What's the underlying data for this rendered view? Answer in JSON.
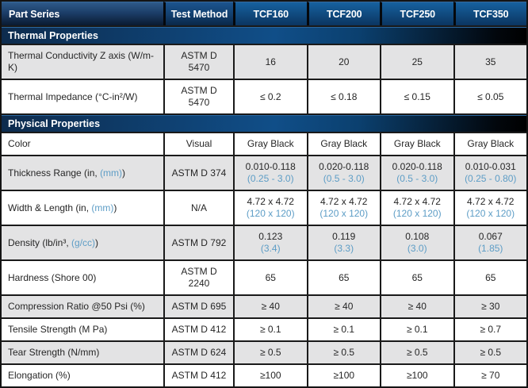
{
  "colors": {
    "header_blue_top": "#16619f",
    "header_blue_bottom": "#0b3560",
    "header_dark_top": "#2e5a8a",
    "header_dark_bottom": "#0a1a30",
    "band_blue": "#104e88",
    "sub_value_blue": "#5d9dc6",
    "row_gray": "#e3e3e4",
    "border": "#1a1a1a",
    "text": "#262626"
  },
  "header": {
    "columns": [
      "Part Series",
      "Test Method",
      "TCF160",
      "TCF200",
      "TCF250",
      "TCF350"
    ]
  },
  "sections": [
    {
      "title": "Thermal Properties",
      "rows": [
        {
          "shade": "gray",
          "size": "tall",
          "label": [
            {
              "t": "Thermal Conductivity Z axis (W/m-K)"
            }
          ],
          "method": "ASTM D\n5470",
          "values": [
            {
              "main": "16"
            },
            {
              "main": "20"
            },
            {
              "main": "25"
            },
            {
              "main": "35"
            }
          ]
        },
        {
          "shade": "white",
          "size": "tall",
          "label": [
            {
              "t": "Thermal Impedance (°C-in²/W)"
            }
          ],
          "method": "ASTM D\n5470",
          "values": [
            {
              "main": "≤ 0.2"
            },
            {
              "main": "≤ 0.18"
            },
            {
              "main": "≤ 0.15"
            },
            {
              "main": "≤ 0.05"
            }
          ]
        }
      ]
    },
    {
      "title": "Physical Properties",
      "rows": [
        {
          "shade": "white",
          "size": "short",
          "label": [
            {
              "t": "Color"
            }
          ],
          "method": "Visual",
          "values": [
            {
              "main": "Gray Black"
            },
            {
              "main": "Gray Black"
            },
            {
              "main": "Gray Black"
            },
            {
              "main": "Gray Black"
            }
          ]
        },
        {
          "shade": "gray",
          "size": "tall",
          "label": [
            {
              "t": "Thickness Range (in, "
            },
            {
              "t": "(mm)",
              "blue": true
            },
            {
              "t": ")"
            }
          ],
          "method": "ASTM D 374",
          "values": [
            {
              "main": "0.010-0.118",
              "sub": "(0.25 - 3.0)"
            },
            {
              "main": "0.020-0.118",
              "sub": "(0.5 - 3.0)"
            },
            {
              "main": "0.020-0.118",
              "sub": "(0.5 - 3.0)"
            },
            {
              "main": "0.010-0.031",
              "sub": "(0.25 - 0.80)"
            }
          ]
        },
        {
          "shade": "white",
          "size": "tall",
          "label": [
            {
              "t": "Width & Length (in, "
            },
            {
              "t": "(mm)",
              "blue": true
            },
            {
              "t": ")"
            }
          ],
          "method": "N/A",
          "values": [
            {
              "main": "4.72 x 4.72",
              "sub": "(120 x 120)"
            },
            {
              "main": "4.72 x 4.72",
              "sub": "(120 x 120)"
            },
            {
              "main": "4.72 x 4.72",
              "sub": "(120 x 120)"
            },
            {
              "main": "4.72 x 4.72",
              "sub": "(120 x 120)"
            }
          ]
        },
        {
          "shade": "gray",
          "size": "tall",
          "label": [
            {
              "t": "Density (lb/in³, "
            },
            {
              "t": "(g/cc)",
              "blue": true
            },
            {
              "t": ")"
            }
          ],
          "method": "ASTM D 792",
          "values": [
            {
              "main": "0.123",
              "sub": "(3.4)"
            },
            {
              "main": "0.119",
              "sub": "(3.3)"
            },
            {
              "main": "0.108",
              "sub": "(3.0)"
            },
            {
              "main": "0.067",
              "sub": "(1.85)"
            }
          ]
        },
        {
          "shade": "white",
          "size": "mid",
          "label": [
            {
              "t": "Hardness (Shore 00)"
            }
          ],
          "method": "ASTM D\n2240",
          "values": [
            {
              "main": "65"
            },
            {
              "main": "65"
            },
            {
              "main": "65"
            },
            {
              "main": "65"
            }
          ]
        },
        {
          "shade": "gray",
          "size": "short",
          "label": [
            {
              "t": "Compression Ratio @50 Psi (%)"
            }
          ],
          "method": "ASTM D 695",
          "values": [
            {
              "main": "≥ 40"
            },
            {
              "main": "≥ 40"
            },
            {
              "main": "≥ 40"
            },
            {
              "main": "≥ 30"
            }
          ]
        },
        {
          "shade": "white",
          "size": "short",
          "label": [
            {
              "t": "Tensile Strength (M Pa)"
            }
          ],
          "method": "ASTM D 412",
          "values": [
            {
              "main": "≥ 0.1"
            },
            {
              "main": "≥ 0.1"
            },
            {
              "main": "≥ 0.1"
            },
            {
              "main": "≥ 0.7"
            }
          ]
        },
        {
          "shade": "gray",
          "size": "short",
          "label": [
            {
              "t": "Tear Strength (N/mm)"
            }
          ],
          "method": "ASTM D 624",
          "values": [
            {
              "main": "≥ 0.5"
            },
            {
              "main": "≥ 0.5"
            },
            {
              "main": "≥ 0.5"
            },
            {
              "main": "≥ 0.5"
            }
          ]
        },
        {
          "shade": "white",
          "size": "short",
          "label": [
            {
              "t": "Elongation (%)"
            }
          ],
          "method": "ASTM D 412",
          "values": [
            {
              "main": "≥100"
            },
            {
              "main": "≥100"
            },
            {
              "main": "≥100"
            },
            {
              "main": "≥ 70"
            }
          ]
        }
      ]
    }
  ]
}
